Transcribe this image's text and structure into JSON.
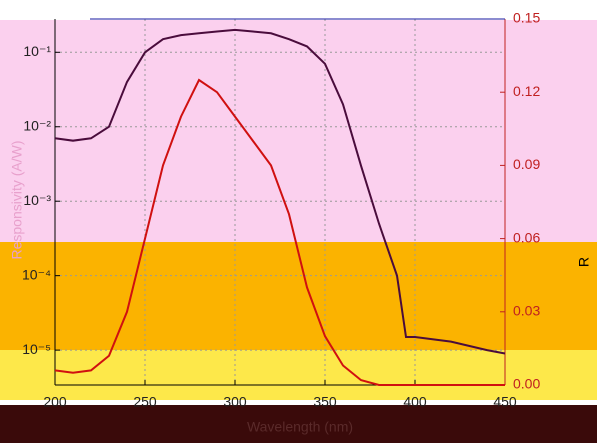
{
  "chart_data": {
    "type": "line",
    "x_label": "Wavelength (nm)",
    "y_label": "Responsivity (A/W)",
    "y2_label": "R",
    "x": [
      200,
      210,
      220,
      230,
      240,
      250,
      260,
      270,
      280,
      290,
      300,
      310,
      320,
      330,
      340,
      350,
      360,
      370,
      380,
      390,
      395,
      400,
      420,
      440,
      450
    ],
    "series": [
      {
        "name": "Responsivity",
        "color": "#4a0c3c",
        "axis": "y",
        "values": [
          0.007,
          0.0065,
          0.007,
          0.01,
          0.04,
          0.1,
          0.15,
          0.17,
          0.18,
          0.19,
          0.2,
          0.19,
          0.18,
          0.15,
          0.12,
          0.07,
          0.02,
          0.003,
          0.0005,
          0.0001,
          1.5e-05,
          1.5e-05,
          1.3e-05,
          1e-05,
          9e-06
        ]
      },
      {
        "name": "R",
        "color": "#d01010",
        "axis": "y2",
        "values": [
          0.006,
          0.005,
          0.006,
          0.012,
          0.03,
          0.06,
          0.09,
          0.11,
          0.125,
          0.12,
          0.11,
          0.1,
          0.09,
          0.07,
          0.04,
          0.02,
          0.008,
          0.002,
          0,
          0,
          0,
          0,
          0,
          0,
          0
        ]
      }
    ],
    "xlim": [
      200,
      450
    ],
    "xticks": [
      200,
      250,
      300,
      350,
      400,
      450
    ],
    "ylim": [
      3.4e-06,
      0.28
    ],
    "y_log": true,
    "yticks": [
      {
        "value": 1e-05,
        "label": "10⁻⁵"
      },
      {
        "value": 0.0001,
        "label": "10⁻⁴"
      },
      {
        "value": 0.001,
        "label": "10⁻³"
      },
      {
        "value": 0.01,
        "label": "10⁻²"
      },
      {
        "value": 0.1,
        "label": "10⁻¹"
      }
    ],
    "y2lim": [
      0,
      0.15
    ],
    "y2ticks": [
      {
        "value": 0,
        "label": "0.00"
      },
      0.03,
      0.06,
      0.09,
      0.12,
      0.15
    ],
    "grid": true
  }
}
